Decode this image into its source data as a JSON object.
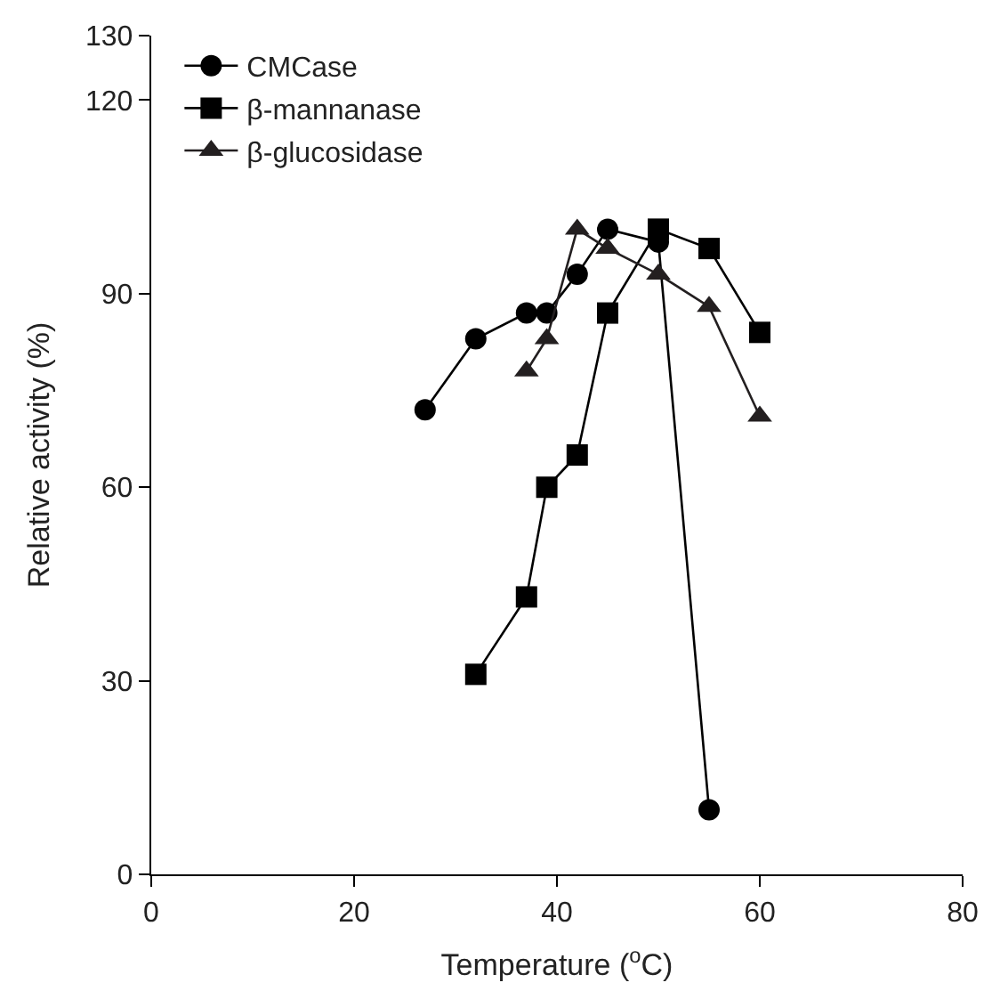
{
  "chart_data": {
    "type": "line",
    "xlabel": "Temperature ($^{o}$C)",
    "ylabel": "Relative activity (%)",
    "xlim": [
      0,
      80
    ],
    "xticks": [
      0,
      20,
      40,
      60,
      80
    ],
    "ylim": [
      0,
      130
    ],
    "yticks": [
      0,
      30,
      60,
      90,
      120,
      130
    ],
    "legend": "top left",
    "series": [
      {
        "name": "CMCase",
        "color": "#000000",
        "marker": "circle",
        "x": [
          27,
          32,
          37,
          39,
          42,
          45,
          50,
          55
        ],
        "values": [
          72,
          83,
          87,
          87,
          93,
          100,
          98,
          10
        ]
      },
      {
        "name": "β-mannanase",
        "color": "#000000",
        "marker": "square",
        "x": [
          32,
          37,
          39,
          42,
          45,
          50,
          55,
          60
        ],
        "values": [
          31,
          43,
          60,
          65,
          87,
          100,
          97,
          84
        ]
      },
      {
        "name": "β-glucosidase",
        "color": "#231f20",
        "marker": "triangle",
        "x": [
          37,
          39,
          42,
          45,
          50,
          55,
          60
        ],
        "values": [
          78,
          83,
          100,
          97,
          93,
          88,
          71
        ]
      }
    ]
  }
}
